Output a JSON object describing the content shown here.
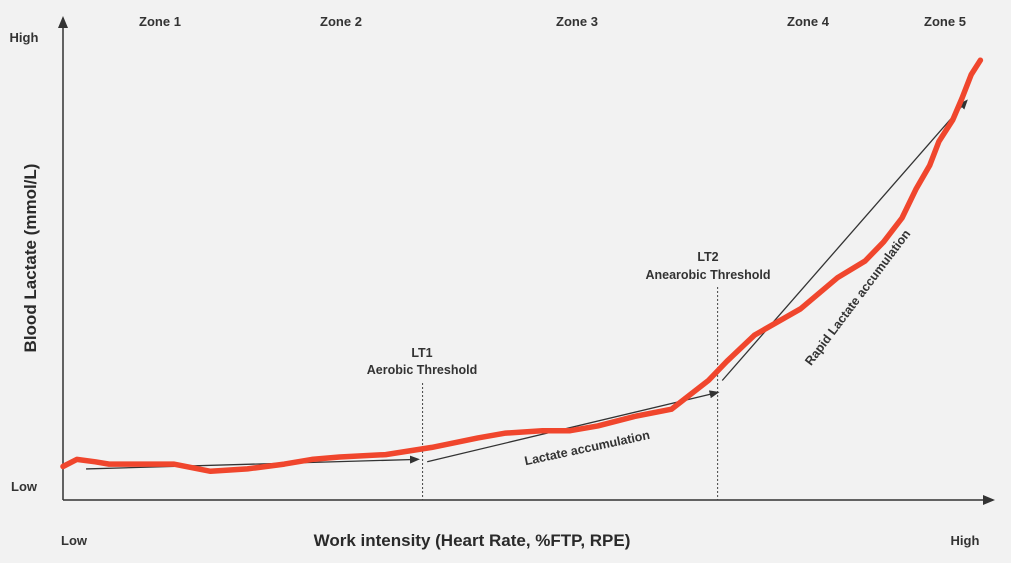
{
  "chart_data": {
    "type": "line",
    "title": "",
    "xlabel": "Work intensity (Heart Rate, %FTP, RPE)",
    "ylabel": "Blood Lactate (mmol/L)",
    "x_tick_labels": [
      "Low",
      "High"
    ],
    "y_tick_labels": [
      "Low",
      "High"
    ],
    "xlim": [
      0,
      100
    ],
    "ylim": [
      0,
      100
    ],
    "grid": false,
    "legend": "none",
    "zones": [
      "Zone 1",
      "Zone 2",
      "Zone 3",
      "Zone 4",
      "Zone 5"
    ],
    "series": [
      {
        "color": "#f0462d",
        "x": [
          0,
          1.5,
          3.5,
          5,
          8,
          12,
          16,
          20,
          24,
          27,
          30,
          35,
          40,
          45,
          48,
          52,
          55,
          58,
          62,
          66,
          70,
          72,
          75,
          80,
          84,
          87,
          89,
          91,
          92.5,
          94,
          95,
          96.5,
          97.5,
          98.5,
          99.5
        ],
        "y": [
          7,
          8.5,
          8,
          7.5,
          7.5,
          7.5,
          6,
          6.5,
          7.5,
          8.5,
          9,
          9.5,
          11,
          13,
          14,
          14.5,
          14.5,
          15.5,
          17.5,
          19,
          25,
          29,
          34.5,
          40,
          46.5,
          50,
          54,
          59,
          65,
          70,
          75,
          79.5,
          84,
          89,
          92
        ]
      }
    ],
    "thresholds": [
      {
        "x": 39,
        "label_line1": "LT1",
        "label_line2": "Aerobic Threshold"
      },
      {
        "x": 71,
        "label_line1": "LT2",
        "label_line2": "Anearobic Threshold"
      }
    ],
    "trend_arrows": [
      {
        "from": [
          2.5,
          6.5
        ],
        "to": [
          38.5,
          8.5
        ],
        "label": ""
      },
      {
        "from": [
          39.5,
          8
        ],
        "to": [
          71,
          22.5
        ],
        "label": "Lactate accumulation"
      },
      {
        "from": [
          71.5,
          25
        ],
        "to": [
          98,
          83.5
        ],
        "label": "Rapid Lactate accumulation"
      }
    ]
  },
  "colors": {
    "background": "#f2f2f2",
    "curve": "#f0462d",
    "axis": "#333333"
  }
}
